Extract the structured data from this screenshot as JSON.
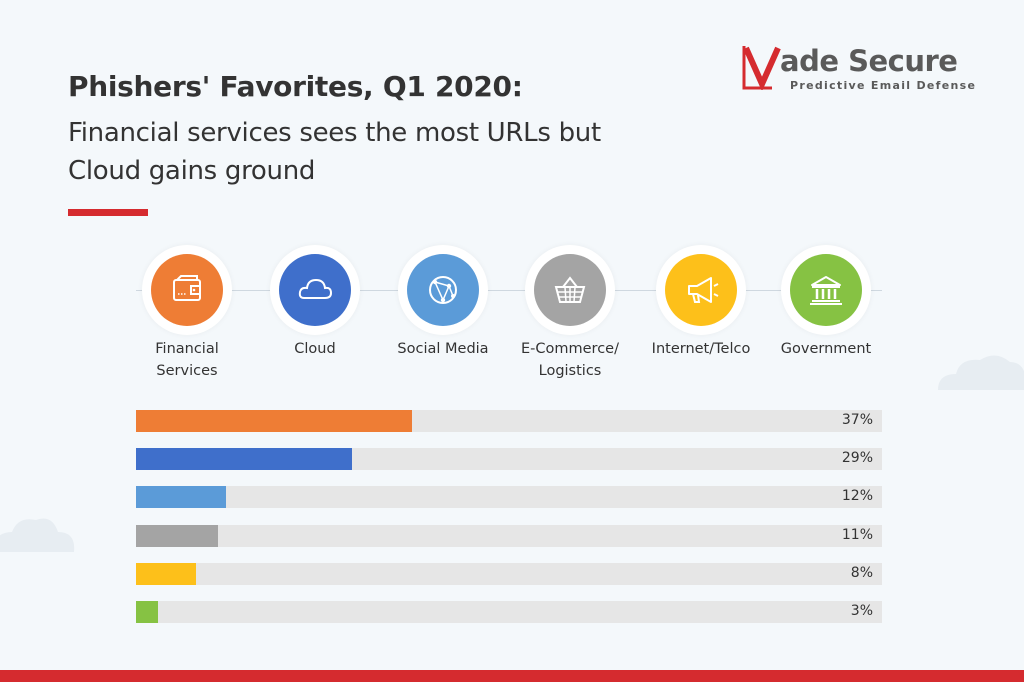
{
  "header": {
    "title": "Phishers' Favorites, Q1 2020:",
    "subtitle": "Financial services sees the most URLs but Cloud gains ground",
    "accent_color": "#d52b2f"
  },
  "logo": {
    "mark_letter": "V",
    "word": "Vade Secure",
    "word_suffix": "ade Secure",
    "tagline": "Predictive Email Defense",
    "color_red": "#d52b2f",
    "color_gray": "#5a5a5a"
  },
  "categories": [
    {
      "label": "Financial\nServices",
      "icon": "wallet-icon",
      "color": "#ee7d35"
    },
    {
      "label": "Cloud",
      "icon": "cloud-icon",
      "color": "#3f6fcb"
    },
    {
      "label": "Social Media",
      "icon": "globe-network-icon",
      "color": "#5b9bd8"
    },
    {
      "label": "E-Commerce/\nLogistics",
      "icon": "shopping-basket-icon",
      "color": "#a4a4a4"
    },
    {
      "label": "Internet/Telco",
      "icon": "megaphone-icon",
      "color": "#fdc01a"
    },
    {
      "label": "Government",
      "icon": "government-building-icon",
      "color": "#86c243"
    }
  ],
  "chart_data": {
    "type": "bar",
    "orientation": "horizontal",
    "categories": [
      "Financial Services",
      "Cloud",
      "Social Media",
      "E-Commerce/Logistics",
      "Internet/Telco",
      "Government"
    ],
    "values": [
      37,
      29,
      12,
      11,
      8,
      3
    ],
    "value_labels": [
      "37%",
      "29%",
      "12%",
      "11%",
      "8%",
      "3%"
    ],
    "colors": [
      "#ee7d35",
      "#3f6fcb",
      "#5b9bd8",
      "#a4a4a4",
      "#fdc01a",
      "#86c243"
    ],
    "xlim": [
      0,
      100
    ],
    "track_color": "#e6e6e6",
    "grid": false,
    "legend": "icons above bars"
  },
  "footer": {
    "stripe_color": "#d52b2f"
  }
}
